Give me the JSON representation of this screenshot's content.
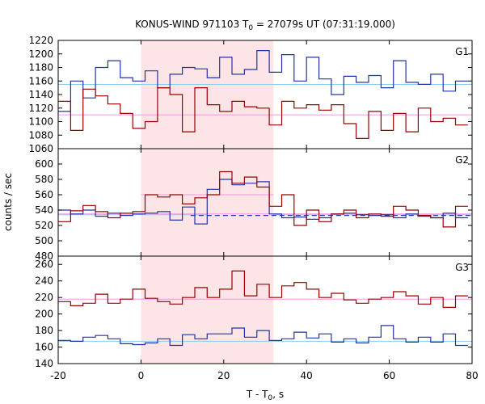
{
  "chart_data": {
    "type": "line",
    "title": "KONUS-WIND 971103 T",
    "title_sub": "0",
    "title_rest": " = 27079s UT (07:31:19.000)",
    "xlabel": "T - T",
    "xlabel_sub": "0",
    "xlabel_rest": ", s",
    "ylabel": "counts / sec",
    "xlim": [
      -20,
      80
    ],
    "x_ticks": [
      -20,
      0,
      20,
      40,
      60,
      80
    ],
    "highlight_interval": [
      0,
      32
    ],
    "colors": {
      "blue": "#2233aa",
      "red": "#990000",
      "cyan": "#88ccee",
      "pink": "#ee99dd",
      "highlight": "#fde4e6",
      "dashed": "#2233aa"
    },
    "bin_edges": [
      -20,
      -17,
      -14,
      -11,
      -8,
      -5,
      -2,
      1,
      4,
      7,
      10,
      13,
      16,
      19,
      22,
      25,
      28,
      31,
      34,
      37,
      40,
      43,
      46,
      49,
      52,
      55,
      58,
      61,
      64,
      67,
      70,
      73,
      76,
      79
    ],
    "panels": [
      {
        "label": "G1",
        "ylim": [
          1060,
          1220
        ],
        "yticks": [
          1060,
          1080,
          1100,
          1120,
          1140,
          1160,
          1180,
          1200,
          1220
        ],
        "series": [
          {
            "color": "blue",
            "values": [
              1115,
              1160,
              1135,
              1180,
              1190,
              1165,
              1160,
              1175,
              1150,
              1170,
              1180,
              1178,
              1165,
              1195,
              1170,
              1177,
              1205,
              1173,
              1199,
              1160,
              1195,
              1163,
              1140,
              1167,
              1158,
              1168,
              1150,
              1190,
              1158,
              1155,
              1170,
              1145,
              1160
            ]
          },
          {
            "color": "red",
            "values": [
              1130,
              1087,
              1148,
              1138,
              1126,
              1112,
              1090,
              1100,
              1150,
              1140,
              1085,
              1150,
              1125,
              1115,
              1130,
              1122,
              1120,
              1095,
              1130,
              1120,
              1125,
              1117,
              1125,
              1097,
              1075,
              1115,
              1087,
              1112,
              1085,
              1120,
              1100,
              1105,
              1095
            ]
          }
        ],
        "backgrounds": [
          {
            "color": "cyan",
            "from": -20,
            "to": 80,
            "level": 1155
          },
          {
            "color": "pink",
            "from": -20,
            "to": 80,
            "level": 1110
          }
        ]
      },
      {
        "label": "G2",
        "ylim": [
          480,
          620
        ],
        "yticks": [
          480,
          500,
          520,
          540,
          560,
          580,
          600
        ],
        "series": [
          {
            "color": "blue",
            "values": [
              540,
              535,
              540,
              532,
              536,
              533,
              535,
              536,
              538,
              527,
              544,
              522,
              567,
              580,
              573,
              575,
              577,
              535,
              530,
              531,
              528,
              530,
              535,
              536,
              534,
              533,
              534,
              530,
              535,
              532,
              530,
              536,
              530
            ]
          },
          {
            "color": "red",
            "values": [
              525,
              539,
              546,
              538,
              530,
              536,
              538,
              560,
              557,
              560,
              548,
              556,
              560,
              590,
              575,
              583,
              570,
              545,
              560,
              520,
              540,
              525,
              535,
              540,
              530,
              535,
              532,
              545,
              540,
              533,
              530,
              518,
              545
            ]
          }
        ],
        "backgrounds": [
          {
            "color": "cyan",
            "from": -20,
            "to": 16,
            "level": 534
          },
          {
            "color": "cyan",
            "from": 32,
            "to": 80,
            "level": 534
          },
          {
            "color": "pink",
            "from": -20,
            "to": 80,
            "level": 535
          },
          {
            "color": "pink",
            "from": 0,
            "to": 32,
            "level": 560
          }
        ],
        "dashed": {
          "from": 12,
          "to": 80,
          "level": 533
        }
      },
      {
        "label": "G3",
        "ylim": [
          140,
          270
        ],
        "yticks": [
          140,
          160,
          180,
          200,
          220,
          240,
          260
        ],
        "series": [
          {
            "color": "blue",
            "values": [
              168,
              167,
              172,
              174,
              170,
              164,
              163,
              165,
              170,
              162,
              175,
              170,
              176,
              176,
              183,
              172,
              180,
              168,
              170,
              178,
              171,
              176,
              166,
              170,
              165,
              172,
              186,
              170,
              166,
              172,
              166,
              176,
              162
            ]
          },
          {
            "color": "red",
            "values": [
              215,
              210,
              213,
              224,
              213,
              218,
              230,
              219,
              215,
              212,
              220,
              232,
              220,
              230,
              252,
              222,
              236,
              220,
              234,
              238,
              230,
              220,
              225,
              217,
              213,
              218,
              220,
              227,
              222,
              212,
              220,
              208,
              222
            ]
          }
        ],
        "backgrounds": [
          {
            "color": "cyan",
            "from": -20,
            "to": 80,
            "level": 167
          },
          {
            "color": "pink",
            "from": -20,
            "to": 80,
            "level": 218
          }
        ]
      }
    ]
  }
}
